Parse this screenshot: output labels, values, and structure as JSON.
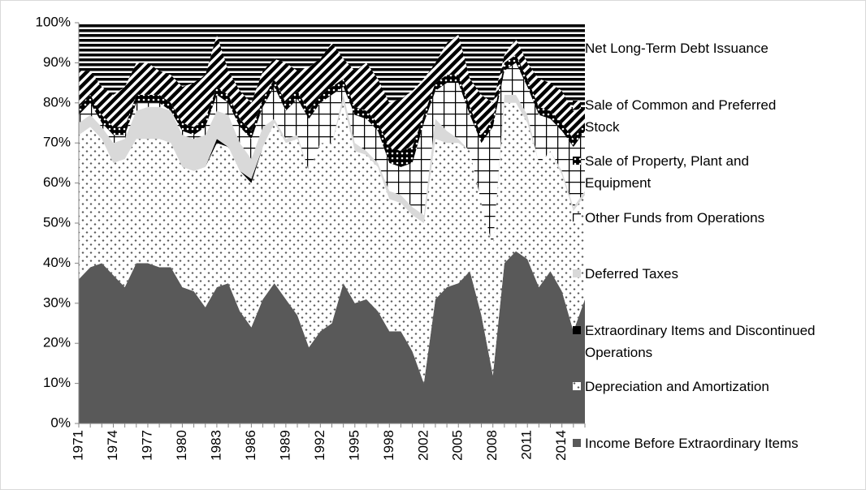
{
  "chart_data": {
    "type": "stacked-area-100",
    "categories": [
      "1971",
      null,
      null,
      "1974",
      null,
      null,
      "1977",
      null,
      null,
      "1980",
      null,
      null,
      "1983",
      null,
      null,
      "1986",
      null,
      null,
      "1989",
      null,
      null,
      "1992",
      null,
      null,
      "1995",
      null,
      null,
      "1998",
      null,
      null,
      "2002",
      null,
      null,
      "2005",
      null,
      null,
      "2008",
      null,
      null,
      "2011",
      null,
      null,
      "2014",
      null,
      null
    ],
    "ylim": [
      0,
      100
    ],
    "yticks": [
      {
        "value": 0,
        "label": "0%"
      },
      {
        "value": 10,
        "label": "10%"
      },
      {
        "value": 20,
        "label": "20%"
      },
      {
        "value": 30,
        "label": "30%"
      },
      {
        "value": 40,
        "label": "40%"
      },
      {
        "value": 50,
        "label": "50%"
      },
      {
        "value": 60,
        "label": "60%"
      },
      {
        "value": 70,
        "label": "70%"
      },
      {
        "value": 80,
        "label": "80%"
      },
      {
        "value": 90,
        "label": "90%"
      },
      {
        "value": 100,
        "label": "100%"
      }
    ],
    "legend": "right",
    "series": [
      {
        "name": "Income Before Extraordinary Items",
        "color": "#595959",
        "pattern": "solid",
        "values": [
          36,
          39,
          40,
          37,
          34,
          40,
          40,
          39,
          39,
          34,
          33,
          29,
          34,
          35,
          28,
          24,
          31,
          35,
          31,
          27,
          19,
          23,
          25,
          35,
          30,
          31,
          28,
          23,
          23,
          18,
          10,
          31,
          34,
          35,
          38,
          27,
          12,
          40,
          43,
          41,
          34,
          38,
          33,
          23,
          31
        ]
      },
      {
        "name": "Depreciation and Amortization",
        "color": "#595959",
        "pattern": "dots",
        "values": [
          36,
          35,
          31,
          28,
          32,
          31,
          31,
          32,
          31,
          30,
          30,
          35,
          36,
          34,
          35,
          36,
          38,
          40,
          39,
          44,
          44,
          47,
          45,
          45,
          38,
          36,
          36,
          33,
          32,
          34,
          40,
          40,
          36,
          35,
          30,
          28,
          32,
          40,
          37,
          34,
          31,
          30,
          29,
          30,
          26
        ]
      },
      {
        "name": "Extraordinary Items and Discontinued Operations",
        "color": "#000000",
        "pattern": "solid",
        "values": [
          0,
          0,
          0,
          0,
          0,
          0,
          0,
          0,
          0,
          0,
          0,
          0,
          1,
          0,
          0,
          1,
          0,
          0,
          0,
          0,
          0,
          0,
          0,
          0,
          0,
          0,
          0,
          0,
          0,
          0,
          0,
          0,
          0,
          0,
          0,
          0,
          0,
          0,
          0,
          0,
          0,
          0,
          0,
          0,
          0
        ]
      },
      {
        "name": "Deferred Taxes",
        "color": "#d9d9d9",
        "pattern": "solid",
        "values": [
          3,
          3,
          3,
          5,
          5,
          7,
          8,
          8,
          8,
          8,
          8,
          8,
          7,
          8,
          7,
          5,
          5,
          1,
          1,
          1,
          0,
          0,
          0,
          2,
          2,
          1,
          1,
          2,
          2,
          2,
          2,
          5,
          3,
          1,
          0,
          0,
          0,
          2,
          2,
          2,
          0,
          0,
          1,
          1,
          1
        ]
      },
      {
        "name": "Other Funds from Operations",
        "color": "#000000",
        "pattern": "grid",
        "values": [
          2,
          3,
          1,
          2,
          1,
          2,
          1,
          1,
          0,
          1,
          1,
          2,
          4,
          3,
          4,
          5,
          5,
          8,
          7,
          9,
          13,
          10,
          12,
          2,
          7,
          8,
          8,
          7,
          7,
          11,
          23,
          7,
          12,
          14,
          9,
          15,
          30,
          6,
          8,
          7,
          12,
          8,
          10,
          15,
          15
        ]
      },
      {
        "name": "Sale of Property, Plant and Equipment",
        "color": "#000000",
        "pattern": "dotted-black",
        "values": [
          2,
          2,
          2,
          2,
          2,
          2,
          2,
          2,
          2,
          2,
          2,
          2,
          2,
          2,
          2,
          2,
          2,
          2,
          2,
          2,
          2,
          2,
          2,
          2,
          2,
          2,
          2,
          4,
          4,
          4,
          2,
          2,
          2,
          2,
          2,
          2,
          2,
          2,
          2,
          2,
          2,
          2,
          2,
          2,
          2
        ]
      },
      {
        "name": "Sale of Common and Preferred Stock",
        "color": "#000000",
        "pattern": "diagonal",
        "values": [
          9,
          6,
          7,
          8,
          10,
          8,
          8,
          6,
          7,
          9,
          11,
          11,
          13,
          6,
          7,
          7,
          7,
          5,
          10,
          5,
          11,
          9,
          11,
          5,
          9,
          12,
          11,
          11,
          13,
          14,
          9,
          5,
          8,
          10,
          7,
          10,
          4,
          2,
          4,
          4,
          7,
          7,
          8,
          7,
          4
        ]
      },
      {
        "name": "Net Long-Term Debt Issuance",
        "color": "#000000",
        "pattern": "horizontal",
        "values": [
          12,
          12,
          16,
          18,
          16,
          10,
          10,
          12,
          13,
          16,
          15,
          13,
          3,
          12,
          17,
          20,
          12,
          9,
          10,
          12,
          11,
          9,
          5,
          9,
          12,
          10,
          14,
          20,
          19,
          17,
          14,
          10,
          5,
          3,
          14,
          18,
          20,
          8,
          4,
          10,
          14,
          15,
          17,
          22,
          21
        ]
      }
    ]
  }
}
